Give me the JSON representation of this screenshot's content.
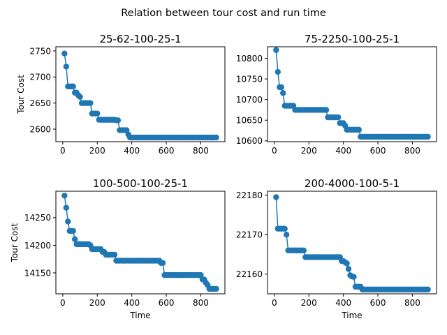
{
  "figure_title": "Relation between tour cost and run time",
  "series_color": "#1f77b4",
  "chart_data": [
    {
      "type": "line",
      "title": "25-62-100-25-1",
      "xlabel": "",
      "ylabel": "Tour Cost",
      "xlim": [
        -40,
        940
      ],
      "ylim": [
        2576,
        2758
      ],
      "xticks": [
        0,
        200,
        400,
        600,
        800
      ],
      "yticks": [
        2600,
        2650,
        2700,
        2750
      ],
      "marker": "circle",
      "x": [
        10,
        20,
        30,
        40,
        50,
        60,
        70,
        80,
        90,
        100,
        110,
        120,
        130,
        140,
        150,
        160,
        170,
        180,
        190,
        200,
        210,
        220,
        230,
        240,
        250,
        260,
        270,
        280,
        290,
        300,
        310,
        320,
        330,
        340,
        350,
        360,
        370,
        380,
        390,
        400,
        410,
        420,
        430,
        440,
        450,
        460,
        470,
        480,
        490,
        500,
        510,
        520,
        530,
        540,
        550,
        560,
        570,
        580,
        590,
        600,
        610,
        620,
        630,
        640,
        650,
        660,
        670,
        680,
        690,
        700,
        710,
        720,
        730,
        740,
        750,
        760,
        770,
        780,
        790,
        800,
        810,
        820,
        830,
        840,
        850,
        860,
        870,
        880,
        890
      ],
      "y": [
        2745,
        2720,
        2682,
        2682,
        2682,
        2682,
        2670,
        2670,
        2665,
        2662,
        2650,
        2650,
        2650,
        2650,
        2650,
        2650,
        2630,
        2630,
        2630,
        2630,
        2618,
        2618,
        2618,
        2618,
        2618,
        2618,
        2618,
        2618,
        2618,
        2618,
        2617,
        2617,
        2598,
        2598,
        2598,
        2598,
        2598,
        2590,
        2584,
        2584,
        2584,
        2584,
        2584,
        2584,
        2584,
        2584,
        2584,
        2584,
        2584,
        2584,
        2584,
        2584,
        2584,
        2584,
        2584,
        2584,
        2584,
        2584,
        2584,
        2584,
        2584,
        2584,
        2584,
        2584,
        2584,
        2584,
        2584,
        2584,
        2584,
        2584,
        2584,
        2584,
        2584,
        2584,
        2584,
        2584,
        2584,
        2584,
        2584,
        2584,
        2584,
        2584,
        2584,
        2584,
        2584,
        2584,
        2584,
        2584,
        2584
      ]
    },
    {
      "type": "line",
      "title": "75-2250-100-25-1",
      "xlabel": "",
      "ylabel": "",
      "xlim": [
        -40,
        940
      ],
      "ylim": [
        10598,
        10828
      ],
      "xticks": [
        0,
        200,
        400,
        600,
        800
      ],
      "yticks": [
        10600,
        10650,
        10700,
        10750,
        10800
      ],
      "marker": "circle",
      "x": [
        10,
        20,
        30,
        40,
        50,
        60,
        70,
        80,
        90,
        100,
        110,
        120,
        130,
        140,
        150,
        160,
        170,
        180,
        190,
        200,
        210,
        220,
        230,
        240,
        250,
        260,
        270,
        280,
        290,
        300,
        310,
        320,
        330,
        340,
        350,
        360,
        370,
        380,
        390,
        400,
        410,
        420,
        430,
        440,
        450,
        460,
        470,
        480,
        490,
        500,
        510,
        520,
        530,
        540,
        550,
        560,
        570,
        580,
        590,
        600,
        610,
        620,
        630,
        640,
        650,
        660,
        670,
        680,
        690,
        700,
        710,
        720,
        730,
        740,
        750,
        760,
        770,
        780,
        790,
        800,
        810,
        820,
        830,
        840,
        850,
        860,
        870,
        880,
        890
      ],
      "y": [
        10820,
        10767,
        10730,
        10730,
        10716,
        10685,
        10685,
        10685,
        10685,
        10685,
        10685,
        10675,
        10675,
        10675,
        10675,
        10675,
        10675,
        10675,
        10675,
        10675,
        10675,
        10675,
        10675,
        10675,
        10675,
        10675,
        10675,
        10675,
        10675,
        10675,
        10657,
        10657,
        10657,
        10657,
        10657,
        10657,
        10657,
        10643,
        10643,
        10643,
        10637,
        10627,
        10627,
        10627,
        10627,
        10627,
        10627,
        10627,
        10627,
        10610,
        10610,
        10610,
        10610,
        10610,
        10610,
        10610,
        10610,
        10610,
        10610,
        10610,
        10610,
        10610,
        10610,
        10610,
        10610,
        10610,
        10610,
        10610,
        10610,
        10610,
        10610,
        10610,
        10610,
        10610,
        10610,
        10610,
        10610,
        10610,
        10610,
        10610,
        10610,
        10610,
        10610,
        10610,
        10610,
        10610,
        10610,
        10610,
        10610
      ]
    },
    {
      "type": "line",
      "title": "100-500-100-25-1",
      "xlabel": "Time",
      "ylabel": "Tour Cost",
      "xlim": [
        -40,
        940
      ],
      "ylim": [
        14112,
        14298
      ],
      "xticks": [
        0,
        200,
        400,
        600,
        800
      ],
      "yticks": [
        14150,
        14200,
        14250
      ],
      "marker": "circle",
      "x": [
        10,
        20,
        30,
        40,
        50,
        60,
        70,
        80,
        90,
        100,
        110,
        120,
        130,
        140,
        150,
        160,
        170,
        180,
        190,
        200,
        210,
        220,
        230,
        240,
        250,
        260,
        270,
        280,
        290,
        300,
        310,
        320,
        330,
        340,
        350,
        360,
        370,
        380,
        390,
        400,
        410,
        420,
        430,
        440,
        450,
        460,
        470,
        480,
        490,
        500,
        510,
        520,
        530,
        540,
        550,
        560,
        570,
        580,
        590,
        600,
        610,
        620,
        630,
        640,
        650,
        660,
        670,
        680,
        690,
        700,
        710,
        720,
        730,
        740,
        750,
        760,
        770,
        780,
        790,
        800,
        810,
        820,
        830,
        840,
        850,
        860,
        870,
        880,
        890
      ],
      "y": [
        14290,
        14268,
        14243,
        14226,
        14226,
        14226,
        14211,
        14202,
        14202,
        14202,
        14202,
        14202,
        14202,
        14202,
        14202,
        14200,
        14193,
        14193,
        14193,
        14193,
        14193,
        14193,
        14188,
        14188,
        14183,
        14183,
        14183,
        14183,
        14183,
        14183,
        14172,
        14172,
        14172,
        14172,
        14172,
        14172,
        14172,
        14172,
        14172,
        14172,
        14172,
        14172,
        14172,
        14172,
        14172,
        14172,
        14172,
        14172,
        14172,
        14172,
        14172,
        14172,
        14172,
        14172,
        14172,
        14172,
        14168,
        14168,
        14146,
        14146,
        14146,
        14146,
        14146,
        14146,
        14146,
        14146,
        14146,
        14146,
        14146,
        14146,
        14146,
        14146,
        14146,
        14146,
        14146,
        14146,
        14146,
        14146,
        14146,
        14146,
        14138,
        14138,
        14132,
        14128,
        14121,
        14121,
        14121,
        14121,
        14121
      ]
    },
    {
      "type": "line",
      "title": "200-4000-100-5-1",
      "xlabel": "Time",
      "ylabel": "",
      "xlim": [
        -40,
        940
      ],
      "ylim": [
        22155,
        22181
      ],
      "xticks": [
        0,
        200,
        400,
        600,
        800
      ],
      "yticks": [
        22160,
        22170,
        22180
      ],
      "marker": "circle",
      "x": [
        10,
        20,
        30,
        40,
        50,
        60,
        70,
        80,
        90,
        100,
        110,
        120,
        130,
        140,
        150,
        160,
        170,
        180,
        190,
        200,
        210,
        220,
        230,
        240,
        250,
        260,
        270,
        280,
        290,
        300,
        310,
        320,
        330,
        340,
        350,
        360,
        370,
        380,
        390,
        400,
        410,
        420,
        430,
        440,
        450,
        460,
        470,
        480,
        490,
        500,
        510,
        520,
        530,
        540,
        550,
        560,
        570,
        580,
        590,
        600,
        610,
        620,
        630,
        640,
        650,
        660,
        670,
        680,
        690,
        700,
        710,
        720,
        730,
        740,
        750,
        760,
        770,
        780,
        790,
        800,
        810,
        820,
        830,
        840,
        850,
        860,
        870,
        880,
        890
      ],
      "y": [
        22179.5,
        22171.5,
        22171.5,
        22171.5,
        22171.5,
        22171.5,
        22170,
        22166,
        22166,
        22166,
        22166,
        22166,
        22166,
        22166,
        22166,
        22166,
        22166,
        22164.3,
        22164.3,
        22164.3,
        22164.3,
        22164.3,
        22164.3,
        22164.3,
        22164.3,
        22164.3,
        22164.3,
        22164.3,
        22164.3,
        22164.3,
        22164.3,
        22164.3,
        22164.3,
        22164.3,
        22164.3,
        22164.3,
        22164.3,
        22164.3,
        22163.3,
        22163.3,
        22163,
        22162.7,
        22161.3,
        22159.7,
        22159.4,
        22159.3,
        22156.8,
        22156.8,
        22156.8,
        22156.8,
        22156.1,
        22156.1,
        22156.1,
        22156.1,
        22156.1,
        22156.1,
        22156.1,
        22156.1,
        22156.1,
        22156.1,
        22156.1,
        22156.1,
        22156.1,
        22156.1,
        22156.1,
        22156.1,
        22156.1,
        22156.1,
        22156.1,
        22156.1,
        22156.1,
        22156.1,
        22156.1,
        22156.1,
        22156.1,
        22156.1,
        22156.1,
        22156.1,
        22156.1,
        22156.1,
        22156.1,
        22156.1,
        22156.1,
        22156.1,
        22156.1,
        22156.1,
        22156.1,
        22156.1,
        22156.1
      ]
    }
  ]
}
